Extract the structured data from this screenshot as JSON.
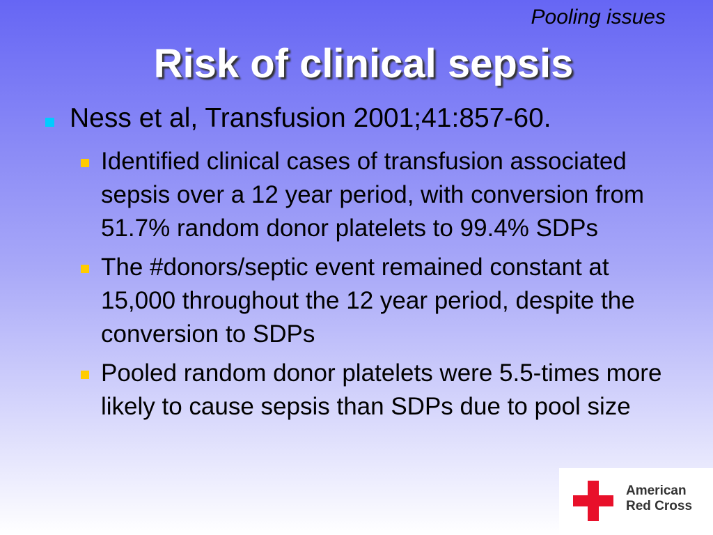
{
  "header": {
    "subtitle": "Pooling issues",
    "title": "Risk of clinical sepsis"
  },
  "bullets": [
    {
      "text": "Ness et al, Transfusion 2001;41:857-60.",
      "children": [
        "Identified clinical cases of transfusion associated sepsis over a 12 year period, with conversion from 51.7% random donor platelets to 99.4% SDPs",
        "The #donors/septic event remained constant at 15,000 throughout the 12 year period, despite the conversion to SDPs",
        "Pooled random donor platelets were 5.5-times more likely to cause sepsis than SDPs due to pool size"
      ]
    }
  ],
  "logo": {
    "line1": "American",
    "line2": "Red Cross"
  }
}
